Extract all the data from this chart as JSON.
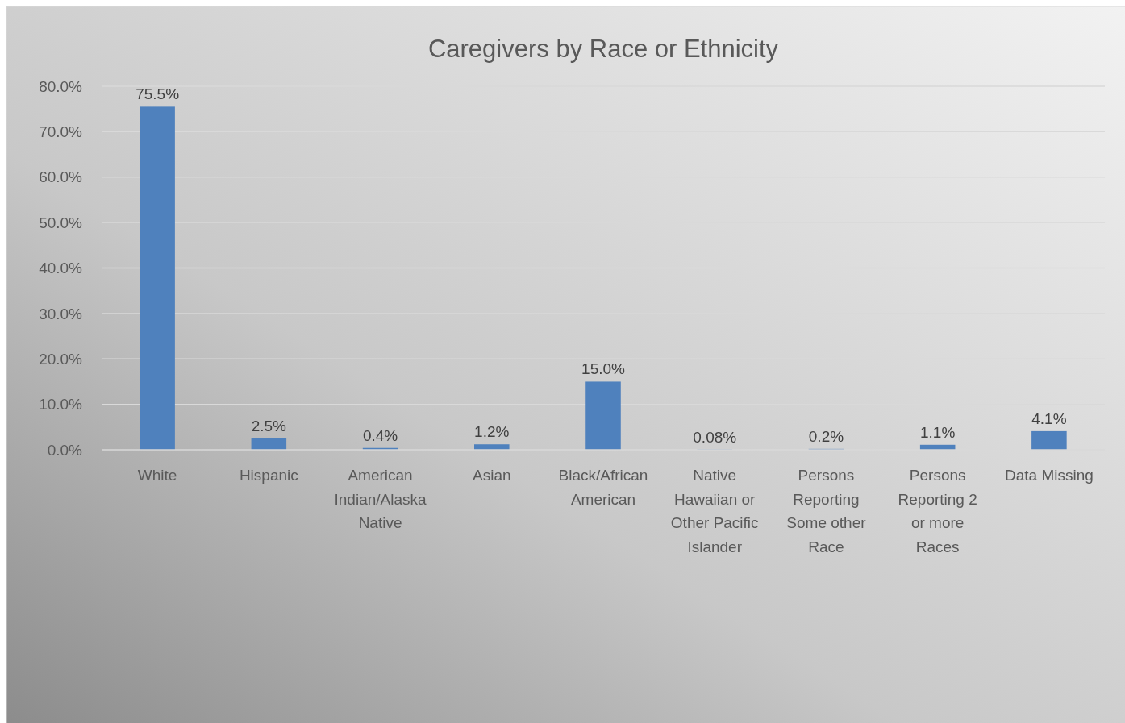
{
  "chart_data": {
    "type": "bar",
    "title": "Caregivers by Race or Ethnicity",
    "categories": [
      "White",
      "Hispanic",
      "American Indian/Alaska Native",
      "Asian",
      "Black/African American",
      "Native Hawaiian or Other Pacific Islander",
      "Persons Reporting Some other Race",
      "Persons Reporting 2 or more Races",
      "Data Missing"
    ],
    "values": [
      75.5,
      2.5,
      0.4,
      1.2,
      15.0,
      0.08,
      0.2,
      1.1,
      4.1
    ],
    "value_labels": [
      "75.5%",
      "2.5%",
      "0.4%",
      "1.2%",
      "15.0%",
      "0.08%",
      "0.2%",
      "1.1%",
      "4.1%"
    ],
    "color": "#4f81bd",
    "ylim": [
      0,
      80
    ],
    "yticks": [
      {
        "value": 0,
        "label": "0.0%"
      },
      {
        "value": 10,
        "label": "10.0%"
      },
      {
        "value": 20,
        "label": "20.0%"
      },
      {
        "value": 30,
        "label": "30.0%"
      },
      {
        "value": 40,
        "label": "40.0%"
      },
      {
        "value": 50,
        "label": "50.0%"
      },
      {
        "value": 60,
        "label": "60.0%"
      },
      {
        "value": 70,
        "label": "70.0%"
      },
      {
        "value": 80,
        "label": "80.0%"
      }
    ],
    "grid": "y"
  }
}
